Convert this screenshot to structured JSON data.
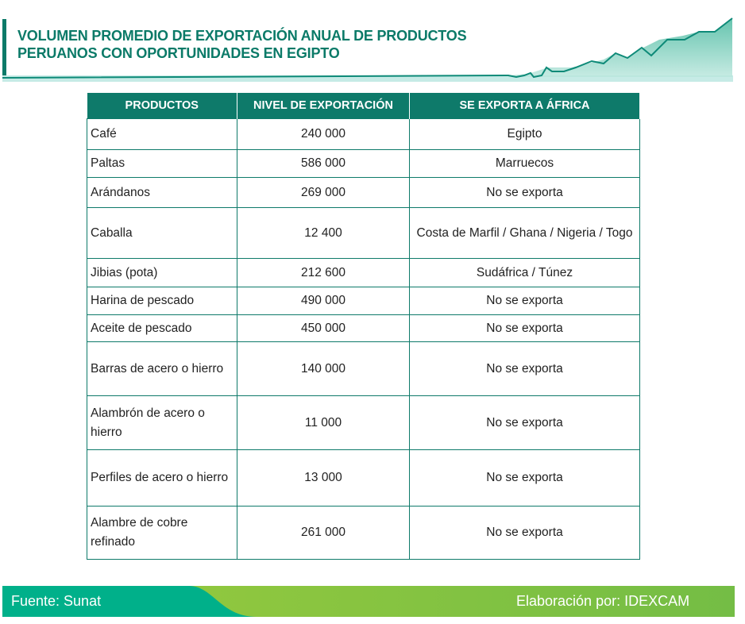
{
  "title": {
    "line1": "VOLUMEN PROMEDIO DE EXPORTACIÓN ANUAL DE PRODUCTOS",
    "line2": "PERUANOS CON OPORTUNIDADES EN EGIPTO"
  },
  "colors": {
    "primary": "#0e7a6a",
    "teal": "#00b08a",
    "green": "#7cc142"
  },
  "table": {
    "headers": [
      "PRODUCTOS",
      "NIVEL DE EXPORTACIÓN",
      "SE EXPORTA A ÁFRICA"
    ],
    "rows": [
      {
        "product": "Café",
        "level": "240 000",
        "africa": "Egipto"
      },
      {
        "product": "Paltas",
        "level": "586 000",
        "africa": "Marruecos"
      },
      {
        "product": "Arándanos",
        "level": "269 000",
        "africa": "No se exporta"
      },
      {
        "product": "Caballa",
        "level": "12 400",
        "africa": "Costa de Marfil / Ghana / Nigeria / Togo"
      },
      {
        "product": "Jibias (pota)",
        "level": "212 600",
        "africa": "Sudáfrica / Túnez"
      },
      {
        "product": "Harina de pescado",
        "level": "490 000",
        "africa": "No se exporta"
      },
      {
        "product": "Aceite de pescado",
        "level": "450 000",
        "africa": "No se exporta"
      },
      {
        "product": "Barras de acero o hierro",
        "level": "140 000",
        "africa": "No se exporta"
      },
      {
        "product": "Alambrón de acero o hierro",
        "level": "11 000",
        "africa": "No se exporta"
      },
      {
        "product": "Perfiles de acero o hierro",
        "level": "13 000",
        "africa": "No se exporta"
      },
      {
        "product": "Alambre de cobre refinado",
        "level": "261 000",
        "africa": "No se exporta"
      }
    ]
  },
  "footer": {
    "source": "Fuente: Sunat",
    "credit": "Elaboración por:  IDEXCAM"
  }
}
